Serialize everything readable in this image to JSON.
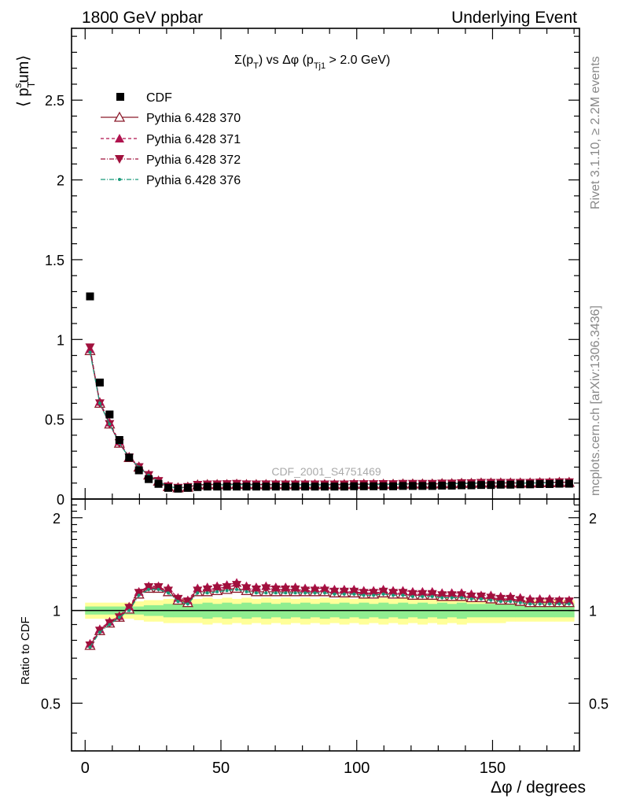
{
  "header": {
    "left_label": "1800 GeV ppbar",
    "right_label": "Underlying Event"
  },
  "side_labels": {
    "rivet": "Rivet 3.1.10, ≥ 2.2M events",
    "mcplots": "mcplots.cern.ch [arXiv:1306.3436]"
  },
  "watermark": "CDF_2001_S4751469",
  "chart_data": [
    {
      "type": "scatter",
      "title": "Σ(p_T) vs Δφ (p_Tj1 > 2.0 GeV)",
      "title_parts": {
        "a": "Σ(p",
        "b": "T",
        "c": ") vs Δφ (p",
        "d": "Tj1",
        "e": " > 2.0 GeV)"
      },
      "ylabel": "⟨ p_T^sum⟩",
      "ylabel_parts": {
        "open": "⟨ p",
        "sub": "T",
        "sup": "s",
        "rest": "um⟩"
      },
      "xlim": [
        -5,
        182
      ],
      "ylim": [
        0,
        2.95
      ],
      "yticks": [
        0.5,
        1,
        1.5,
        2,
        2.5
      ],
      "ytick_labels": [
        "0.5",
        "1",
        "1.5",
        "2",
        "2.5"
      ],
      "y_bottom_label": "0",
      "legend_position": "top-left",
      "legend": [
        {
          "name": "CDF",
          "marker": "square-filled",
          "line": "none",
          "color": "#000000"
        },
        {
          "name": "Pythia 6.428 370",
          "marker": "triangle-up-open",
          "line": "solid",
          "color": "#8b1a2b"
        },
        {
          "name": "Pythia 6.428 371",
          "marker": "triangle-up-filled",
          "line": "dashed",
          "color": "#b0124e"
        },
        {
          "name": "Pythia 6.428 372",
          "marker": "triangle-down-filled",
          "line": "dashdot",
          "color": "#a0103c"
        },
        {
          "name": "Pythia 6.428 376",
          "marker": "dot",
          "line": "dashdot",
          "color": "#1a9a7a"
        }
      ],
      "x": [
        1.8,
        5.4,
        9,
        12.6,
        16.2,
        19.8,
        23.4,
        27,
        30.6,
        34.2,
        37.8,
        41.4,
        45,
        48.6,
        52.2,
        55.8,
        59.4,
        63,
        66.6,
        70.2,
        73.8,
        77.4,
        81,
        84.6,
        88.2,
        91.8,
        95.4,
        99,
        102.6,
        106.2,
        109.8,
        113.4,
        117,
        120.6,
        124.2,
        127.8,
        131.4,
        135,
        138.6,
        142.2,
        145.8,
        149.4,
        153,
        156.6,
        160.2,
        163.8,
        167.4,
        171,
        174.6,
        178.2
      ],
      "series": [
        {
          "name": "CDF",
          "values": [
            1.27,
            0.73,
            0.53,
            0.37,
            0.26,
            0.18,
            0.125,
            0.095,
            0.07,
            0.065,
            0.07,
            0.075,
            0.078,
            0.078,
            0.078,
            0.078,
            0.078,
            0.078,
            0.078,
            0.078,
            0.078,
            0.078,
            0.078,
            0.078,
            0.078,
            0.078,
            0.078,
            0.08,
            0.08,
            0.08,
            0.08,
            0.08,
            0.082,
            0.082,
            0.082,
            0.082,
            0.084,
            0.084,
            0.086,
            0.086,
            0.088,
            0.088,
            0.09,
            0.09,
            0.092,
            0.092,
            0.094,
            0.094,
            0.096,
            0.096
          ]
        },
        {
          "name": "Pythia 6.428 370",
          "values": [
            0.93,
            0.6,
            0.47,
            0.35,
            0.26,
            0.2,
            0.15,
            0.112,
            0.078,
            0.07,
            0.074,
            0.088,
            0.09,
            0.09,
            0.09,
            0.092,
            0.09,
            0.09,
            0.09,
            0.09,
            0.09,
            0.09,
            0.09,
            0.09,
            0.09,
            0.09,
            0.09,
            0.092,
            0.092,
            0.092,
            0.092,
            0.092,
            0.094,
            0.094,
            0.094,
            0.094,
            0.096,
            0.096,
            0.098,
            0.098,
            0.1,
            0.1,
            0.1,
            0.1,
            0.1,
            0.1,
            0.102,
            0.102,
            0.104,
            0.104
          ]
        },
        {
          "name": "Pythia 6.428 371",
          "values": [
            0.94,
            0.61,
            0.48,
            0.36,
            0.265,
            0.205,
            0.155,
            0.115,
            0.08,
            0.071,
            0.077,
            0.09,
            0.092,
            0.093,
            0.094,
            0.096,
            0.093,
            0.092,
            0.093,
            0.092,
            0.092,
            0.092,
            0.092,
            0.092,
            0.092,
            0.092,
            0.092,
            0.094,
            0.094,
            0.094,
            0.095,
            0.094,
            0.096,
            0.096,
            0.096,
            0.096,
            0.098,
            0.098,
            0.1,
            0.1,
            0.102,
            0.102,
            0.102,
            0.102,
            0.102,
            0.102,
            0.104,
            0.104,
            0.106,
            0.106
          ]
        },
        {
          "name": "Pythia 6.428 372",
          "values": [
            0.95,
            0.6,
            0.47,
            0.35,
            0.26,
            0.2,
            0.15,
            0.113,
            0.079,
            0.07,
            0.075,
            0.089,
            0.091,
            0.092,
            0.093,
            0.095,
            0.092,
            0.091,
            0.092,
            0.091,
            0.091,
            0.091,
            0.091,
            0.091,
            0.091,
            0.091,
            0.091,
            0.093,
            0.093,
            0.093,
            0.094,
            0.093,
            0.095,
            0.095,
            0.095,
            0.095,
            0.097,
            0.097,
            0.099,
            0.099,
            0.101,
            0.101,
            0.101,
            0.101,
            0.101,
            0.101,
            0.103,
            0.103,
            0.105,
            0.105
          ]
        },
        {
          "name": "Pythia 6.428 376",
          "values": [
            0.92,
            0.6,
            0.47,
            0.35,
            0.26,
            0.2,
            0.148,
            0.111,
            0.077,
            0.069,
            0.074,
            0.087,
            0.089,
            0.089,
            0.089,
            0.091,
            0.089,
            0.089,
            0.089,
            0.089,
            0.089,
            0.089,
            0.089,
            0.089,
            0.089,
            0.089,
            0.089,
            0.091,
            0.091,
            0.091,
            0.091,
            0.091,
            0.093,
            0.093,
            0.093,
            0.093,
            0.095,
            0.095,
            0.097,
            0.097,
            0.099,
            0.099,
            0.099,
            0.099,
            0.099,
            0.099,
            0.101,
            0.101,
            0.103,
            0.103
          ]
        }
      ]
    },
    {
      "type": "scatter",
      "ylabel": "Ratio to CDF",
      "xlabel": "Δφ / degrees",
      "xlim": [
        -5,
        182
      ],
      "ylim": [
        0.35,
        2.3
      ],
      "y_scale": "log",
      "xticks": [
        0,
        50,
        100,
        150
      ],
      "xtick_labels": [
        "0",
        "50",
        "100",
        "150"
      ],
      "yticks": [
        0.5,
        1,
        2
      ],
      "ytick_labels": [
        "0.5",
        "1",
        "2"
      ],
      "reference_line": 1,
      "band_inner_color": "#90ee90",
      "band_outer_color": "#ffff99",
      "band_inner_halfwidth": [
        0.03,
        0.03,
        0.03,
        0.03,
        0.03,
        0.03,
        0.04,
        0.04,
        0.05,
        0.05,
        0.05,
        0.05,
        0.06,
        0.05,
        0.06,
        0.05,
        0.06,
        0.05,
        0.06,
        0.05,
        0.06,
        0.05,
        0.06,
        0.05,
        0.06,
        0.05,
        0.06,
        0.05,
        0.06,
        0.05,
        0.06,
        0.05,
        0.06,
        0.05,
        0.06,
        0.05,
        0.06,
        0.05,
        0.06,
        0.05,
        0.05,
        0.05,
        0.05,
        0.05,
        0.05,
        0.05,
        0.05,
        0.05,
        0.05,
        0.05
      ],
      "band_outer_halfwidth": [
        0.06,
        0.06,
        0.06,
        0.06,
        0.06,
        0.07,
        0.08,
        0.08,
        0.09,
        0.09,
        0.09,
        0.09,
        0.1,
        0.09,
        0.1,
        0.09,
        0.1,
        0.09,
        0.1,
        0.09,
        0.1,
        0.09,
        0.1,
        0.09,
        0.1,
        0.09,
        0.1,
        0.09,
        0.1,
        0.09,
        0.1,
        0.09,
        0.1,
        0.09,
        0.1,
        0.09,
        0.1,
        0.09,
        0.1,
        0.09,
        0.09,
        0.09,
        0.09,
        0.08,
        0.08,
        0.08,
        0.08,
        0.08,
        0.08,
        0.08
      ],
      "series": [
        {
          "name": "Pythia 6.428 370",
          "values": [
            0.77,
            0.86,
            0.91,
            0.95,
            1.01,
            1.13,
            1.18,
            1.18,
            1.15,
            1.08,
            1.06,
            1.15,
            1.15,
            1.16,
            1.17,
            1.18,
            1.16,
            1.15,
            1.15,
            1.15,
            1.15,
            1.15,
            1.15,
            1.15,
            1.15,
            1.14,
            1.14,
            1.14,
            1.13,
            1.13,
            1.14,
            1.13,
            1.13,
            1.12,
            1.12,
            1.12,
            1.11,
            1.11,
            1.11,
            1.1,
            1.1,
            1.09,
            1.08,
            1.08,
            1.07,
            1.06,
            1.06,
            1.06,
            1.06,
            1.06
          ]
        },
        {
          "name": "Pythia 6.428 371",
          "values": [
            0.78,
            0.87,
            0.92,
            0.96,
            1.03,
            1.15,
            1.2,
            1.2,
            1.18,
            1.1,
            1.08,
            1.18,
            1.19,
            1.2,
            1.21,
            1.23,
            1.2,
            1.19,
            1.2,
            1.19,
            1.19,
            1.19,
            1.18,
            1.18,
            1.18,
            1.17,
            1.17,
            1.17,
            1.16,
            1.16,
            1.17,
            1.16,
            1.16,
            1.15,
            1.15,
            1.15,
            1.14,
            1.14,
            1.14,
            1.13,
            1.12,
            1.12,
            1.11,
            1.11,
            1.1,
            1.09,
            1.09,
            1.09,
            1.08,
            1.08
          ]
        },
        {
          "name": "Pythia 6.428 372",
          "values": [
            0.77,
            0.86,
            0.91,
            0.95,
            1.02,
            1.14,
            1.19,
            1.19,
            1.16,
            1.09,
            1.07,
            1.16,
            1.17,
            1.18,
            1.19,
            1.21,
            1.18,
            1.17,
            1.18,
            1.17,
            1.17,
            1.17,
            1.16,
            1.16,
            1.16,
            1.15,
            1.15,
            1.15,
            1.14,
            1.14,
            1.15,
            1.14,
            1.14,
            1.13,
            1.13,
            1.13,
            1.12,
            1.12,
            1.12,
            1.11,
            1.11,
            1.1,
            1.09,
            1.09,
            1.08,
            1.07,
            1.07,
            1.07,
            1.07,
            1.07
          ]
        },
        {
          "name": "Pythia 6.428 376",
          "values": [
            0.76,
            0.85,
            0.9,
            0.95,
            1.0,
            1.12,
            1.17,
            1.17,
            1.14,
            1.07,
            1.05,
            1.14,
            1.14,
            1.15,
            1.16,
            1.17,
            1.15,
            1.14,
            1.14,
            1.14,
            1.14,
            1.14,
            1.14,
            1.14,
            1.14,
            1.13,
            1.13,
            1.13,
            1.12,
            1.12,
            1.13,
            1.12,
            1.12,
            1.11,
            1.11,
            1.11,
            1.1,
            1.1,
            1.1,
            1.09,
            1.09,
            1.08,
            1.07,
            1.07,
            1.06,
            1.05,
            1.05,
            1.05,
            1.05,
            1.05
          ]
        }
      ]
    }
  ]
}
